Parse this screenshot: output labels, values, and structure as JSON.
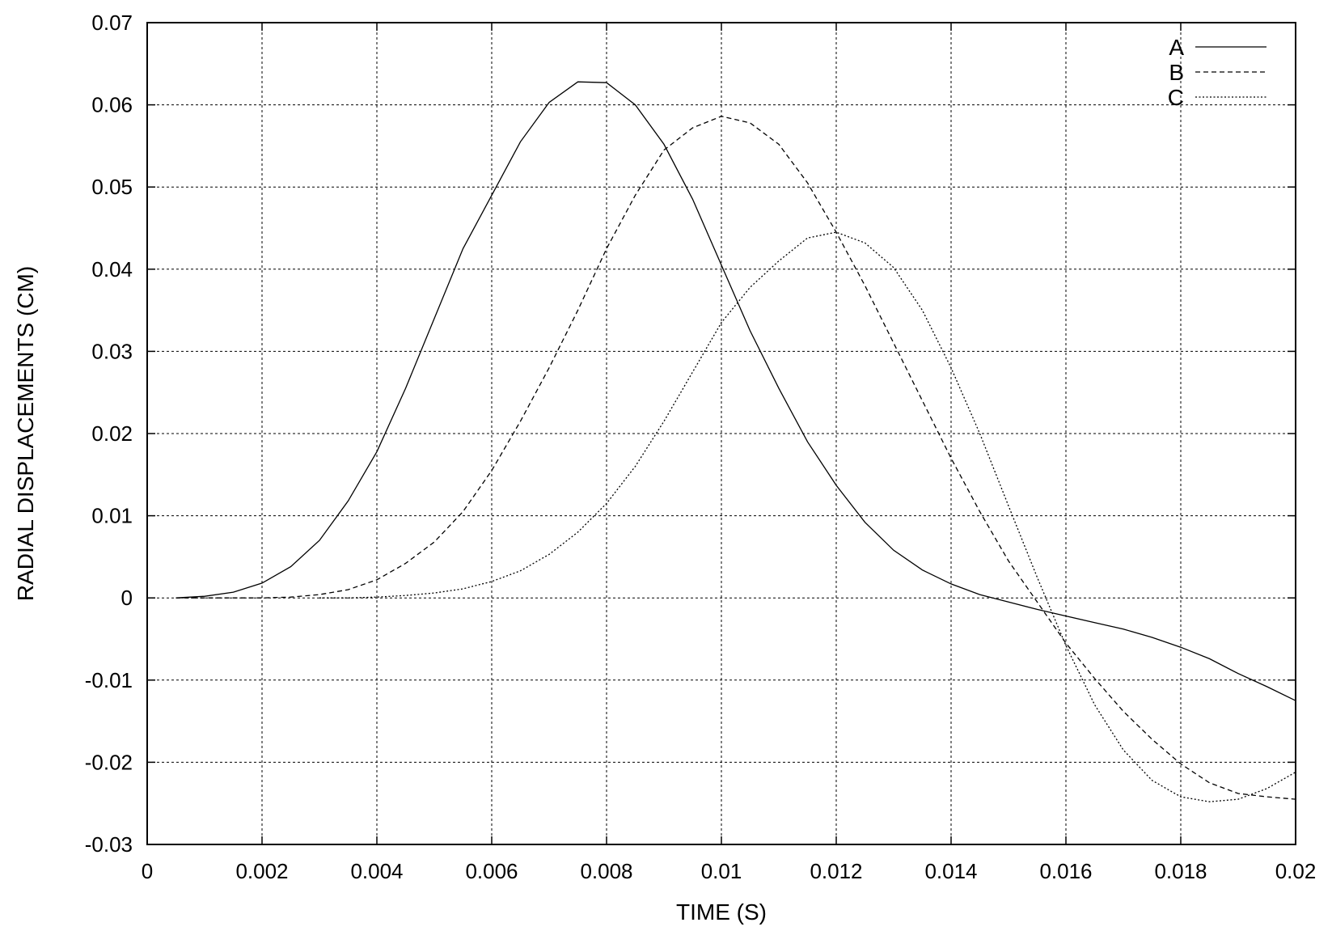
{
  "chart_data": {
    "type": "line",
    "xlabel": "TIME (S)",
    "ylabel": "RADIAL DISPLACEMENTS (CM)",
    "xlim": [
      0,
      0.02
    ],
    "ylim": [
      -0.03,
      0.07
    ],
    "grid": true,
    "legend_position": "top-right",
    "x_ticks": [
      {
        "value": 0,
        "label": "0"
      },
      {
        "value": 0.002,
        "label": "0.002"
      },
      {
        "value": 0.004,
        "label": "0.004"
      },
      {
        "value": 0.006,
        "label": "0.006"
      },
      {
        "value": 0.008,
        "label": "0.008"
      },
      {
        "value": 0.01,
        "label": "0.01"
      },
      {
        "value": 0.012,
        "label": "0.012"
      },
      {
        "value": 0.014,
        "label": "0.014"
      },
      {
        "value": 0.016,
        "label": "0.016"
      },
      {
        "value": 0.018,
        "label": "0.018"
      },
      {
        "value": 0.02,
        "label": "0.02"
      }
    ],
    "y_ticks": [
      {
        "value": 0.07,
        "label": "0.07"
      },
      {
        "value": 0.06,
        "label": "0.06"
      },
      {
        "value": 0.05,
        "label": "0.05"
      },
      {
        "value": 0.04,
        "label": "0.04"
      },
      {
        "value": 0.03,
        "label": "0.03"
      },
      {
        "value": 0.02,
        "label": "0.02"
      },
      {
        "value": 0.01,
        "label": "0.01"
      },
      {
        "value": 0,
        "label": "0"
      },
      {
        "value": -0.01,
        "label": "-0.01"
      },
      {
        "value": -0.02,
        "label": "-0.02"
      },
      {
        "value": -0.03,
        "label": "-0.03"
      }
    ],
    "series": [
      {
        "name": "A",
        "style": "solid",
        "x": [
          0.0005,
          0.001,
          0.0015,
          0.002,
          0.0025,
          0.003,
          0.0035,
          0.004,
          0.0045,
          0.005,
          0.0055,
          0.006,
          0.0065,
          0.007,
          0.0075,
          0.008,
          0.0085,
          0.009,
          0.0095,
          0.01,
          0.0105,
          0.011,
          0.0115,
          0.012,
          0.0125,
          0.013,
          0.0135,
          0.014,
          0.0145,
          0.015,
          0.0155,
          0.016,
          0.0165,
          0.017,
          0.0175,
          0.018,
          0.0185,
          0.019,
          0.0195,
          0.02
        ],
        "y": [
          0.0,
          0.0002,
          0.0007,
          0.0018,
          0.0038,
          0.007,
          0.0118,
          0.0178,
          0.0255,
          0.034,
          0.0425,
          0.049,
          0.0555,
          0.0603,
          0.0628,
          0.0627,
          0.06,
          0.0552,
          0.0485,
          0.0405,
          0.0325,
          0.0255,
          0.019,
          0.0137,
          0.0092,
          0.0058,
          0.0034,
          0.0017,
          0.0004,
          -0.0005,
          -0.0014,
          -0.0022,
          -0.003,
          -0.0038,
          -0.0048,
          -0.006,
          -0.0074,
          -0.0092,
          -0.0108,
          -0.0125
        ]
      },
      {
        "name": "B",
        "style": "dashed",
        "x": [
          0.0005,
          0.001,
          0.0015,
          0.002,
          0.0025,
          0.003,
          0.0035,
          0.004,
          0.0045,
          0.005,
          0.0055,
          0.006,
          0.0065,
          0.007,
          0.0075,
          0.008,
          0.0085,
          0.009,
          0.0095,
          0.01,
          0.0105,
          0.011,
          0.0115,
          0.012,
          0.0125,
          0.013,
          0.0135,
          0.014,
          0.0145,
          0.015,
          0.0155,
          0.016,
          0.0165,
          0.017,
          0.0175,
          0.018,
          0.0185,
          0.019,
          0.0195,
          0.02
        ],
        "y": [
          0.0,
          0.0,
          0.0,
          0.0,
          0.0001,
          0.0004,
          0.001,
          0.0022,
          0.0042,
          0.0068,
          0.0105,
          0.0155,
          0.0215,
          0.028,
          0.035,
          0.0425,
          0.049,
          0.0545,
          0.0572,
          0.0586,
          0.0578,
          0.0552,
          0.0505,
          0.0445,
          0.038,
          0.031,
          0.024,
          0.017,
          0.0105,
          0.0045,
          -0.0005,
          -0.0055,
          -0.0098,
          -0.0138,
          -0.0172,
          -0.0202,
          -0.0225,
          -0.0238,
          -0.0242,
          -0.0245
        ]
      },
      {
        "name": "C",
        "style": "dotted",
        "x": [
          0.003,
          0.0035,
          0.004,
          0.0045,
          0.005,
          0.0055,
          0.006,
          0.0065,
          0.007,
          0.0075,
          0.008,
          0.0085,
          0.009,
          0.0095,
          0.01,
          0.0105,
          0.011,
          0.0115,
          0.012,
          0.0125,
          0.013,
          0.0135,
          0.014,
          0.0145,
          0.015,
          0.0155,
          0.016,
          0.0165,
          0.017,
          0.0175,
          0.018,
          0.0185,
          0.019,
          0.0195,
          0.02
        ],
        "y": [
          0.0,
          0.0,
          0.0001,
          0.0003,
          0.0006,
          0.0011,
          0.002,
          0.0033,
          0.0053,
          0.008,
          0.0115,
          0.016,
          0.0215,
          0.0275,
          0.0335,
          0.0378,
          0.041,
          0.0438,
          0.0445,
          0.0432,
          0.0402,
          0.035,
          0.028,
          0.02,
          0.0112,
          0.0025,
          -0.0058,
          -0.013,
          -0.0185,
          -0.0222,
          -0.0242,
          -0.0248,
          -0.0245,
          -0.0232,
          -0.0212
        ]
      }
    ]
  }
}
